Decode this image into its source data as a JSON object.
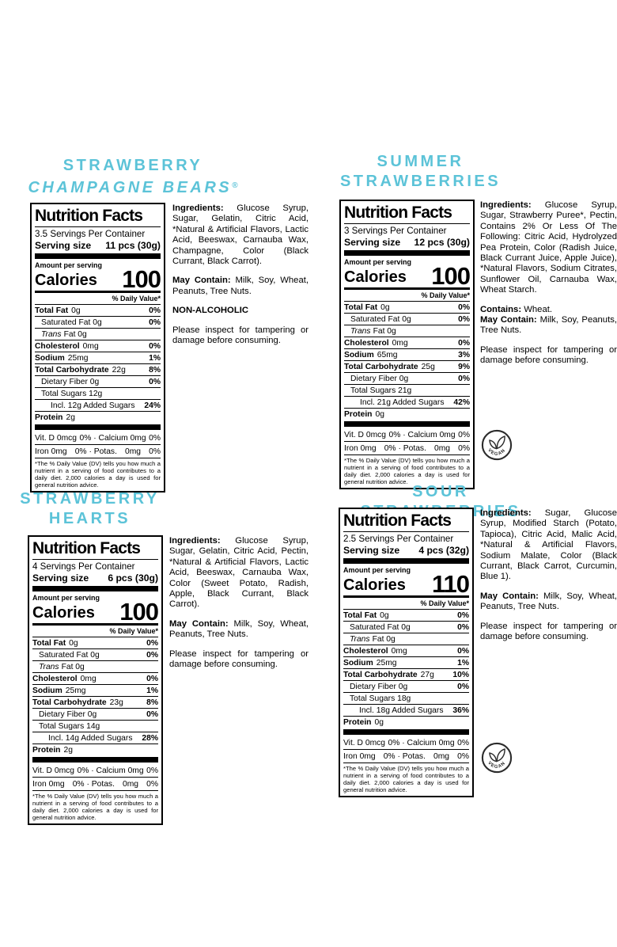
{
  "accent_color": "#5cc3d8",
  "vegan_badge_label": "VEGAN",
  "products": [
    {
      "title_line1": "STRAWBERRY",
      "title_line2": "CHAMPAGNE BEARS",
      "title_line2_sup": "®",
      "panel": {
        "heading": "Nutrition Facts",
        "servings_per_container": "3.5 Servings Per Container",
        "serving_size_label": "Serving size",
        "serving_size_value": "11 pcs (30g)",
        "amount_per_serving": "Amount per serving",
        "calories_label": "Calories",
        "calories_value": "100",
        "daily_value_header": "% Daily Value*",
        "rows": [
          {
            "b": "Total Fat",
            "t": "0g",
            "dv": "0%",
            "ind": 0
          },
          {
            "t": "Saturated Fat  0g",
            "dv": "0%",
            "ind": 1
          },
          {
            "i": "Trans",
            "t": "Fat  0g",
            "dv": "",
            "ind": 1
          },
          {
            "b": "Cholesterol",
            "t": "0mg",
            "dv": "0%",
            "ind": 0
          },
          {
            "b": "Sodium",
            "t": "25mg",
            "dv": "1%",
            "ind": 0
          },
          {
            "b": "Total Carbohydrate",
            "t": "22g",
            "dv": "8%",
            "ind": 0
          },
          {
            "t": "Dietary Fiber  0g",
            "dv": "0%",
            "ind": 1
          },
          {
            "t": "Total Sugars  12g",
            "dv": "",
            "ind": 1
          },
          {
            "t": "Incl. 12g Added Sugars",
            "dv": "24%",
            "ind": 2
          },
          {
            "b": "Protein",
            "t": "2g",
            "dv": "",
            "ind": 0
          }
        ],
        "micros": [
          [
            "Vit. D 0mcg",
            "0% · Calcium 0mg",
            "0%"
          ],
          [
            "Iron 0mg",
            "0% · Potas.",
            "0mg",
            "0%"
          ]
        ],
        "footnote": "*The % Daily Value (DV) tells you how much a nutrient in a serving of food contributes to a daily diet. 2,000 calories a day is used for general nutrition advice."
      },
      "info": [
        {
          "bold": "Ingredients:",
          "text": " Glucose Syrup, Sugar, Gelatin, Citric Acid, *Natural & Artificial Flavors, Lactic Acid, Beeswax, Carnauba Wax, Champagne, Color (Black Currant, Black Carrot)."
        },
        {
          "bold": "May Contain:",
          "text": " Milk, Soy, Wheat, Peanuts, Tree Nuts."
        },
        {
          "bold": "NON-ALCOHOLIC",
          "text": ""
        },
        {
          "bold": "",
          "text": "Please inspect for tampering or damage before consuming."
        }
      ],
      "vegan_badge": false
    },
    {
      "title_line1": "SUMMER",
      "title_line2": "STRAWBERRIES",
      "panel": {
        "heading": "Nutrition Facts",
        "servings_per_container": "3 Servings Per Container",
        "serving_size_label": "Serving size",
        "serving_size_value": "12 pcs (30g)",
        "amount_per_serving": "Amount per serving",
        "calories_label": "Calories",
        "calories_value": "100",
        "daily_value_header": "% Daily Value*",
        "rows": [
          {
            "b": "Total Fat",
            "t": "0g",
            "dv": "0%",
            "ind": 0
          },
          {
            "t": "Saturated Fat  0g",
            "dv": "0%",
            "ind": 1
          },
          {
            "i": "Trans",
            "t": "Fat  0g",
            "dv": "",
            "ind": 1
          },
          {
            "b": "Cholesterol",
            "t": "0mg",
            "dv": "0%",
            "ind": 0
          },
          {
            "b": "Sodium",
            "t": "65mg",
            "dv": "3%",
            "ind": 0
          },
          {
            "b": "Total Carbohydrate",
            "t": "25g",
            "dv": "9%",
            "ind": 0
          },
          {
            "t": "Dietary Fiber  0g",
            "dv": "0%",
            "ind": 1
          },
          {
            "t": "Total Sugars  21g",
            "dv": "",
            "ind": 1
          },
          {
            "t": "Incl. 21g Added Sugars",
            "dv": "42%",
            "ind": 2
          },
          {
            "b": "Protein",
            "t": "0g",
            "dv": "",
            "ind": 0
          }
        ],
        "micros": [
          [
            "Vit. D 0mcg",
            "0% · Calcium 0mg",
            "0%"
          ],
          [
            "Iron 0mg",
            "0% · Potas.",
            "0mg",
            "0%"
          ]
        ],
        "footnote": "*The % Daily Value (DV) tells you how much a nutrient in a serving of food contributes to a daily diet. 2,000 calories a day is used for general nutrition advice."
      },
      "info": [
        {
          "bold": "Ingredients:",
          "text": " Glucose Syrup, Sugar, Strawberry Puree*, Pectin, Contains 2% Or Less Of The Following: Citric Acid, Hydrolyzed Pea Protein, Color (Radish Juice, Black Currant Juice, Apple Juice), *Natural Flavors, Sodium Citrates, Sunflower Oil, Carnauba Wax, Wheat Starch."
        },
        {
          "bold": "Contains:",
          "text": " Wheat.",
          "tight": true
        },
        {
          "bold": "May Contain:",
          "text": " Milk, Soy, Peanuts, Tree Nuts."
        },
        {
          "bold": "",
          "text": "Please inspect for tampering or damage before consuming."
        }
      ],
      "vegan_badge": true
    },
    {
      "title_line1": "STRAWBERRY",
      "title_line2": "HEARTS",
      "panel": {
        "heading": "Nutrition Facts",
        "servings_per_container": "4 Servings Per Container",
        "serving_size_label": "Serving size",
        "serving_size_value": "6 pcs (30g)",
        "amount_per_serving": "Amount per serving",
        "calories_label": "Calories",
        "calories_value": "100",
        "daily_value_header": "% Daily Value*",
        "rows": [
          {
            "b": "Total Fat",
            "t": "0g",
            "dv": "0%",
            "ind": 0
          },
          {
            "t": "Saturated Fat  0g",
            "dv": "0%",
            "ind": 1
          },
          {
            "i": "Trans",
            "t": "Fat  0g",
            "dv": "",
            "ind": 1
          },
          {
            "b": "Cholesterol",
            "t": "0mg",
            "dv": "0%",
            "ind": 0
          },
          {
            "b": "Sodium",
            "t": "25mg",
            "dv": "1%",
            "ind": 0
          },
          {
            "b": "Total Carbohydrate",
            "t": "23g",
            "dv": "8%",
            "ind": 0
          },
          {
            "t": "Dietary Fiber  0g",
            "dv": "0%",
            "ind": 1
          },
          {
            "t": "Total Sugars  14g",
            "dv": "",
            "ind": 1
          },
          {
            "t": "Incl. 14g Added Sugars",
            "dv": "28%",
            "ind": 2
          },
          {
            "b": "Protein",
            "t": "2g",
            "dv": "",
            "ind": 0
          }
        ],
        "micros": [
          [
            "Vit. D 0mcg",
            "0% · Calcium 0mg",
            "0%"
          ],
          [
            "Iron 0mg",
            "0% · Potas.",
            "0mg",
            "0%"
          ]
        ],
        "footnote": "*The % Daily Value (DV) tells you how much a nutrient in a serving of food contributes to a daily diet. 2,000 calories a day is used for general nutrition advice."
      },
      "info": [
        {
          "bold": "Ingredients:",
          "text": " Glucose Syrup, Sugar, Gelatin, Citric Acid, Pectin, *Natural & Artificial Flavors, Lactic Acid, Beeswax, Carnauba Wax, Color (Sweet Potato, Radish, Apple, Black Currant, Black Carrot)."
        },
        {
          "bold": "May Contain:",
          "text": " Milk, Soy, Wheat, Peanuts, Tree Nuts."
        },
        {
          "bold": "",
          "text": "Please inspect for tampering or damage before consuming."
        }
      ],
      "vegan_badge": false
    },
    {
      "title_line1": "SOUR STRAWBERRIES",
      "panel": {
        "heading": "Nutrition Facts",
        "servings_per_container": "2.5 Servings Per Container",
        "serving_size_label": "Serving size",
        "serving_size_value": "4 pcs (32g)",
        "amount_per_serving": "Amount per serving",
        "calories_label": "Calories",
        "calories_value": "110",
        "daily_value_header": "% Daily Value*",
        "rows": [
          {
            "b": "Total Fat",
            "t": "0g",
            "dv": "0%",
            "ind": 0
          },
          {
            "t": "Saturated Fat  0g",
            "dv": "0%",
            "ind": 1
          },
          {
            "i": "Trans",
            "t": "Fat  0g",
            "dv": "",
            "ind": 1
          },
          {
            "b": "Cholesterol",
            "t": "0mg",
            "dv": "0%",
            "ind": 0
          },
          {
            "b": "Sodium",
            "t": "25mg",
            "dv": "1%",
            "ind": 0
          },
          {
            "b": "Total Carbohydrate",
            "t": "27g",
            "dv": "10%",
            "ind": 0
          },
          {
            "t": "Dietary Fiber  0g",
            "dv": "0%",
            "ind": 1
          },
          {
            "t": "Total Sugars  18g",
            "dv": "",
            "ind": 1
          },
          {
            "t": "Incl. 18g Added Sugars",
            "dv": "36%",
            "ind": 2
          },
          {
            "b": "Protein",
            "t": "0g",
            "dv": "",
            "ind": 0
          }
        ],
        "micros": [
          [
            "Vit. D 0mcg",
            "0% · Calcium 0mg",
            "0%"
          ],
          [
            "Iron 0mg",
            "0% · Potas.",
            "0mg",
            "0%"
          ]
        ],
        "footnote": "*The % Daily Value (DV) tells you how much a nutrient in a serving of food contributes to a daily diet. 2,000 calories a day is used for general nutrition advice."
      },
      "info": [
        {
          "bold": "Ingredients:",
          "text": " Sugar, Glucose Syrup, Modified Starch (Potato, Tapioca), Citric Acid, Malic Acid, *Natural & Artificial Flavors, Sodium Malate, Color (Black Currant, Black Carrot, Curcumin, Blue 1)."
        },
        {
          "bold": "May Contain:",
          "text": " Milk, Soy, Wheat, Peanuts, Tree Nuts."
        },
        {
          "bold": "",
          "text": "Please inspect for tampering or damage before consuming."
        }
      ],
      "vegan_badge": true
    }
  ]
}
